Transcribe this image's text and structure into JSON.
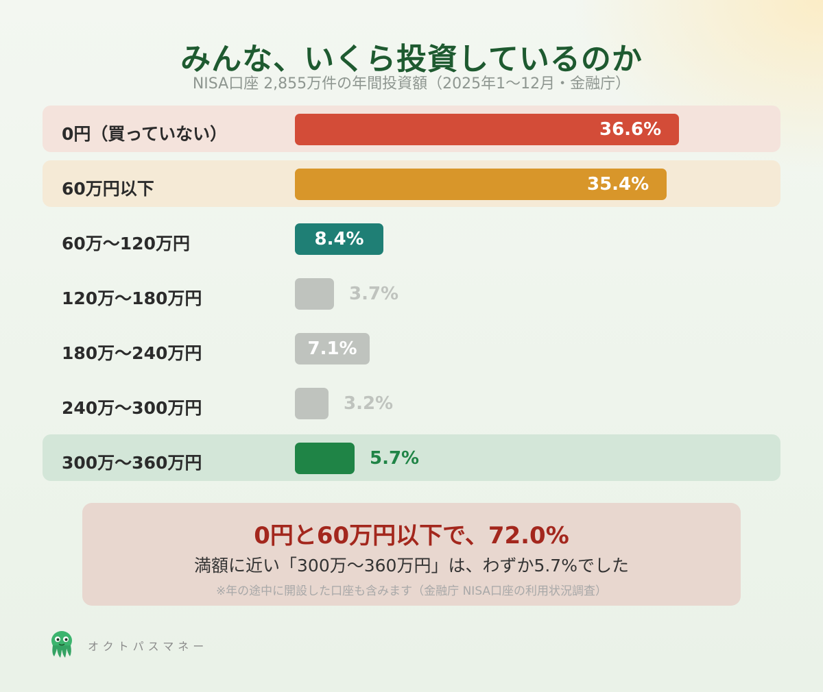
{
  "header": {
    "title": "みんな、いくら投資しているのか",
    "subtitle": "NISA口座 2,855万件の年間投資額（2025年1〜12月・金融庁）"
  },
  "chart_data": {
    "type": "bar",
    "orientation": "horizontal",
    "title": "みんな、いくら投資しているのか",
    "subtitle": "NISA口座 2,855万件の年間投資額（2025年1〜12月・金融庁）",
    "xlim": [
      0,
      36.6
    ],
    "categories": [
      "0円（買っていない）",
      "60万円以下",
      "60万〜120万円",
      "120万〜180万円",
      "180万〜240万円",
      "240万〜300万円",
      "300万〜360万円"
    ],
    "values": [
      36.6,
      35.4,
      8.4,
      3.7,
      7.1,
      3.2,
      5.7
    ],
    "value_labels": [
      "36.6%",
      "35.4%",
      "8.4%",
      "3.7%",
      "7.1%",
      "3.2%",
      "5.7%"
    ],
    "bar_colors": [
      "#d34c38",
      "#d8962a",
      "#1f7f75",
      "#bfc3be",
      "#bfc3be",
      "#bfc3be",
      "#1f8446"
    ],
    "row_backgrounds": [
      "#f4e3dc",
      "#f5ead6",
      "",
      "",
      "",
      "",
      "#d3e6d8"
    ],
    "label_colors": [
      "#ffffff",
      "#ffffff",
      "#ffffff",
      "#bfc3be",
      "#ffffff",
      "#bfc3be",
      "#1f8446"
    ],
    "label_inside": [
      true,
      true,
      true,
      false,
      true,
      false,
      false
    ],
    "grid": false,
    "legend": "none"
  },
  "summary": {
    "headline": "0円と60万円以下で、72.0%",
    "detail": "満額に近い「300万〜360万円」は、わずか5.7%でした",
    "note": "※年の途中に開設した口座も含みます（金融庁 NISA口座の利用状況調査）"
  },
  "brand": {
    "name": "オクトパスマネー",
    "icon": "octopus-mascot-icon"
  },
  "colors": {
    "title": "#1e5a30",
    "headline": "#a3271d",
    "summary_bg": "#e8d7cf"
  }
}
